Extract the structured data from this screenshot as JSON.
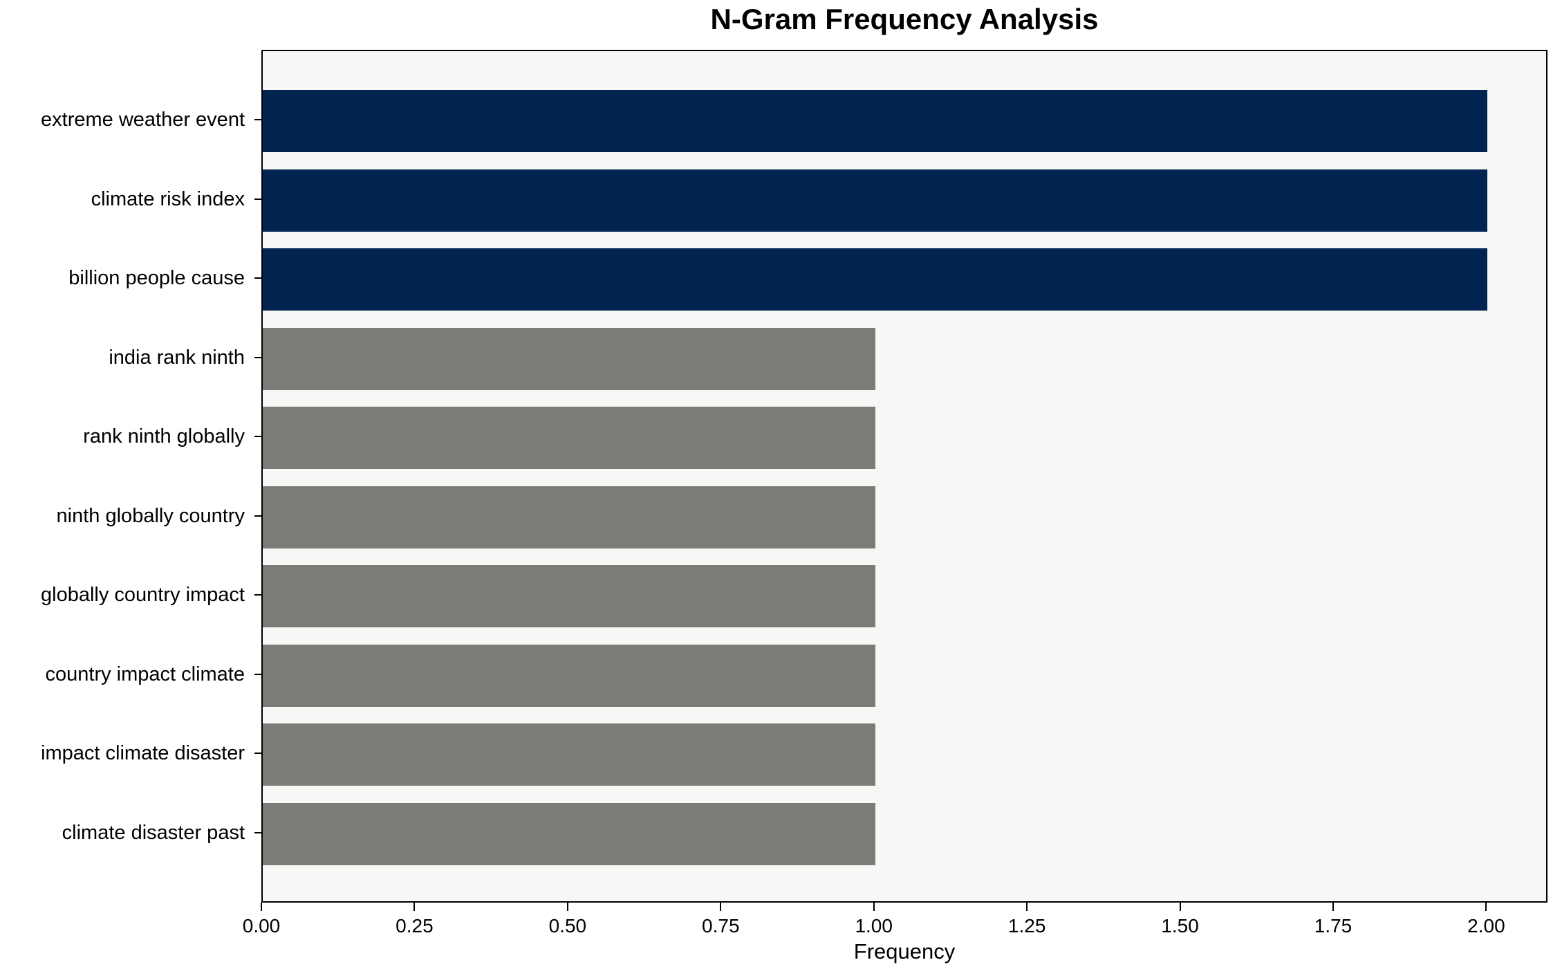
{
  "title": "N-Gram Frequency Analysis",
  "chart_data": {
    "type": "bar",
    "orientation": "horizontal",
    "title": "N-Gram Frequency Analysis",
    "xlabel": "Frequency",
    "ylabel": "",
    "categories": [
      "extreme weather event",
      "climate risk index",
      "billion people cause",
      "india rank ninth",
      "rank ninth globally",
      "ninth globally country",
      "globally country impact",
      "country impact climate",
      "impact climate disaster",
      "climate disaster past"
    ],
    "values": [
      2,
      2,
      2,
      1,
      1,
      1,
      1,
      1,
      1,
      1
    ],
    "bar_colors": [
      "#012450",
      "#012450",
      "#012450",
      "#7b7b78",
      "#7b7b78",
      "#7b7b78",
      "#7b7b78",
      "#7b7b78",
      "#7b7b78",
      "#7b7b78"
    ],
    "xlim": [
      0,
      2.1
    ],
    "xtick_values": [
      0,
      0.25,
      0.5,
      0.75,
      1,
      1.25,
      1.5,
      1.75,
      2
    ],
    "xtick_labels": [
      "0.00",
      "0.25",
      "0.50",
      "0.75",
      "1.00",
      "1.25",
      "1.50",
      "1.75",
      "2.00"
    ],
    "grid": false,
    "legend": null,
    "plot_background": "#f7f7f6",
    "figure_background": "#ffffff",
    "spine_color": "#000000"
  }
}
